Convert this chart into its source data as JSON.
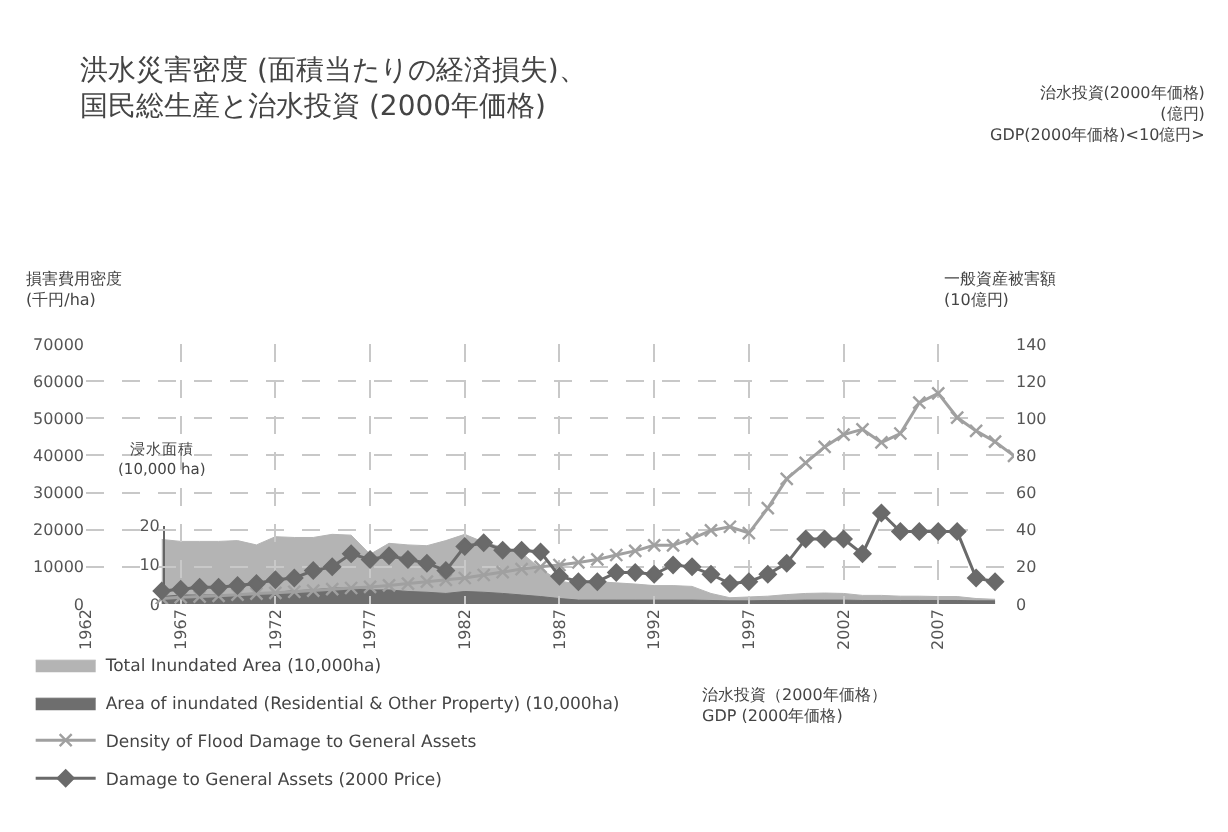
{
  "chart_data": {
    "type": "line",
    "title": "洪水災害密度 (面積当たりの経済損失)、",
    "subtitle": "国民総生産と治水投資 (2000年価格)",
    "ylabel": "損害費用密度\n(千円/ha)",
    "y2label": "一般資産被害額\n(10億円)",
    "y3label": "浸水面積\n(10,000 ha)",
    "annotations": [
      "治水投資(2000年価格)\n(億円)\nGDP(2000年価格)<10億円>",
      "治水投資（2000年価格）\nGDP (2000年価格)"
    ],
    "xlim": [
      1962,
      2011
    ],
    "xticks": [
      1962,
      1967,
      1972,
      1977,
      1982,
      1987,
      1992,
      1997,
      2002,
      2007
    ],
    "ylim": [
      0,
      70000
    ],
    "yticks": [
      0,
      10000,
      20000,
      30000,
      40000,
      50000,
      60000,
      70000
    ],
    "y2lim": [
      0,
      140
    ],
    "y2ticks": [
      0,
      20,
      40,
      60,
      80,
      100,
      120,
      140
    ],
    "y3lim": [
      0,
      20
    ],
    "y3ticks": [
      0,
      10,
      20
    ],
    "grid": true,
    "legend": "bottom left",
    "series": [
      {
        "name": "Total Inundated Area (10,000ha)",
        "type": "area",
        "axis": "y3",
        "color": "#b4b4b4",
        "x": [
          1966,
          1967,
          1968,
          1969,
          1970,
          1971,
          1972,
          1973,
          1974,
          1975,
          1976,
          1977,
          1978,
          1979,
          1980,
          1981,
          1982,
          1983,
          1984,
          1985,
          1986,
          1987,
          1988,
          1989,
          1990,
          1991,
          1992,
          1993,
          1994,
          1995,
          1996,
          1997,
          1998,
          1999,
          2000,
          2001,
          2002,
          2003,
          2004,
          2005,
          2006,
          2007,
          2008,
          2009,
          2010
        ],
        "values": [
          16.5,
          16,
          16,
          16,
          16.2,
          15.1,
          17.2,
          17,
          17,
          17.8,
          17.6,
          12.7,
          15.5,
          15.1,
          14.9,
          16.2,
          17.8,
          15.8,
          14.5,
          13.1,
          9,
          5.9,
          5,
          5.7,
          5.4,
          5.1,
          4.7,
          4.7,
          4.5,
          2.7,
          1.6,
          1.8,
          2,
          2.4,
          2.7,
          2.8,
          2.7,
          2.2,
          2.2,
          2,
          2,
          1.9,
          1.9,
          1.4,
          1.2
        ]
      },
      {
        "name": "Area of inundated (Residential & Other Property) (10,000ha)",
        "type": "area",
        "axis": "y3",
        "color": "#6e6e6e",
        "x": [
          1966,
          1967,
          1968,
          1969,
          1970,
          1971,
          1972,
          1973,
          1974,
          1975,
          1976,
          1977,
          1978,
          1979,
          1980,
          1981,
          1982,
          1983,
          1984,
          1985,
          1986,
          1987,
          1988,
          1989,
          1990,
          1991,
          1992,
          1993,
          1994,
          1995,
          1996,
          1997,
          1998,
          1999,
          2000,
          2001,
          2002,
          2003,
          2004,
          2005,
          2006,
          2007,
          2008,
          2009,
          2010
        ],
        "values": [
          1.9,
          2.3,
          2.3,
          2.3,
          2.3,
          2.7,
          3,
          3.4,
          3.6,
          4.1,
          4.1,
          3.6,
          3.6,
          3.2,
          3,
          2.7,
          3.2,
          3,
          2.7,
          2.3,
          1.9,
          1.4,
          1,
          1,
          1,
          1,
          1,
          1,
          1,
          0.9,
          0.8,
          0.8,
          0.9,
          0.9,
          1,
          1,
          1,
          0.9,
          0.9,
          0.9,
          0.9,
          0.9,
          0.9,
          0.8,
          0.8
        ]
      },
      {
        "name": "Density of Flood Damage to General Assets",
        "axis": "y",
        "color": "#a0a0a0",
        "marker": "cross",
        "x": [
          1966,
          1967,
          1968,
          1969,
          1970,
          1971,
          1972,
          1973,
          1974,
          1975,
          1976,
          1977,
          1978,
          1979,
          1980,
          1981,
          1982,
          1983,
          1984,
          1985,
          1986,
          1987,
          1988,
          1989,
          1990,
          1991,
          1992,
          1993,
          1994,
          1995,
          1996,
          1997,
          1998,
          1999,
          2000,
          2001,
          2002,
          2003,
          2004,
          2005,
          2006,
          2007,
          2008,
          2009,
          2010,
          2011
        ],
        "values": [
          1500,
          1800,
          2000,
          2200,
          2500,
          2800,
          3000,
          3300,
          3600,
          4000,
          4300,
          4600,
          5000,
          5500,
          6000,
          6500,
          7000,
          7800,
          8600,
          9400,
          10000,
          10500,
          11200,
          12000,
          13200,
          14300,
          15800,
          15800,
          17600,
          19800,
          20800,
          19100,
          25800,
          33700,
          38000,
          42300,
          45600,
          47000,
          43500,
          45900,
          54200,
          56700,
          50200,
          46600,
          43700,
          39900
        ]
      },
      {
        "name": "Damage to General Assets (2000 Price)",
        "axis": "y2",
        "color": "#6a6a6a",
        "marker": "diamond",
        "x": [
          1966,
          1967,
          1968,
          1969,
          1970,
          1971,
          1972,
          1973,
          1974,
          1975,
          1976,
          1977,
          1978,
          1979,
          1980,
          1981,
          1982,
          1983,
          1984,
          1985,
          1986,
          1987,
          1988,
          1989,
          1990,
          1991,
          1992,
          1993,
          1994,
          1995,
          1996,
          1997,
          1998,
          1999,
          2000,
          2001,
          2002,
          2003,
          2004,
          2005,
          2006,
          2007,
          2008,
          2009,
          2010
        ],
        "values": [
          7,
          8,
          9,
          9,
          10,
          11,
          13,
          14,
          18,
          20,
          27,
          24,
          26,
          24,
          22,
          18,
          31,
          33,
          29,
          29,
          28,
          15,
          12,
          12,
          17,
          17,
          16,
          21,
          20,
          16,
          11,
          12,
          16,
          22,
          35,
          35,
          35,
          27,
          49,
          39,
          39,
          39,
          39,
          14,
          12
        ]
      }
    ]
  }
}
